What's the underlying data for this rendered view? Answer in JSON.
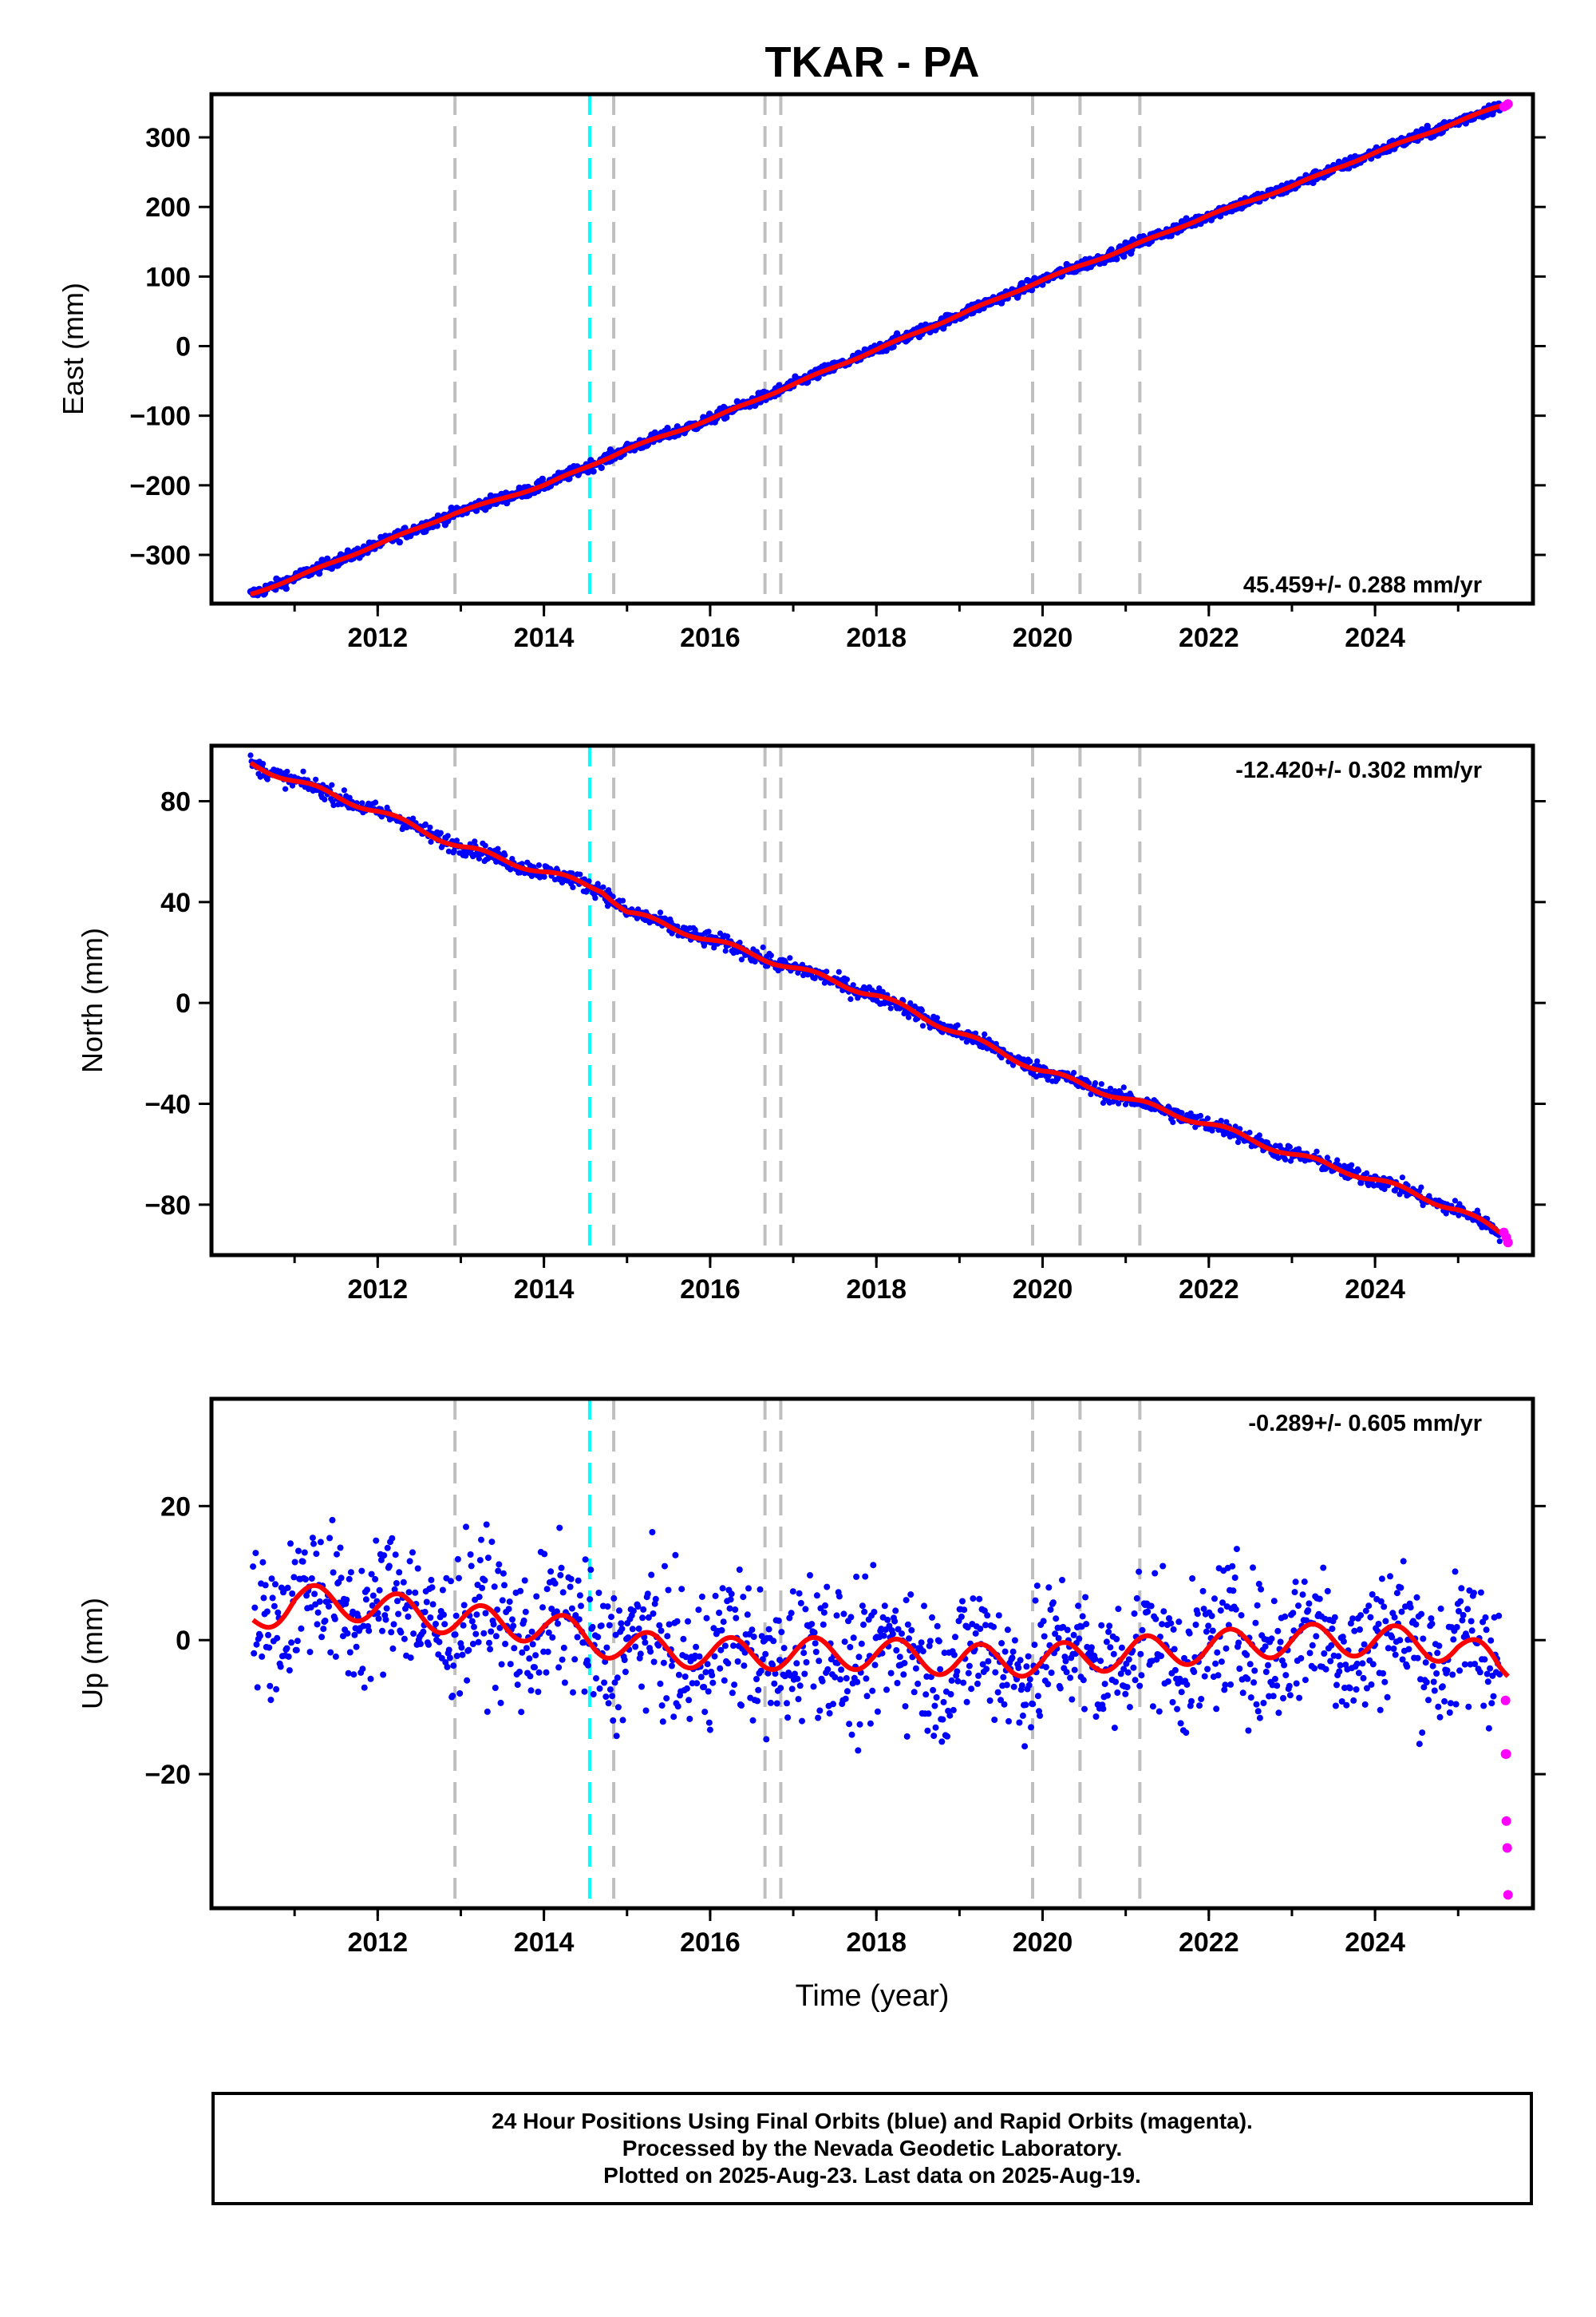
{
  "title": "TKAR - PA",
  "colors": {
    "final_orbits": "#0000ff",
    "rapid_orbits": "#ff00ff",
    "model_fit": "#ff0000",
    "event_line": "#bfbfbf",
    "highlight_event_line": "#00ffff"
  },
  "caption": {
    "line1": "24 Hour Positions Using Final Orbits (blue) and Rapid Orbits (magenta).",
    "line2": "Processed by the Nevada Geodetic Laboratory.",
    "line3": "Plotted on 2025-Aug-23. Last data on 2025-Aug-19."
  },
  "chart_data": [
    {
      "type": "scatter",
      "component": "East",
      "ylabel": "East (mm)",
      "xlabel": "",
      "xlim": [
        2010.0,
        2025.9
      ],
      "ylim": [
        -370,
        362
      ],
      "yticks": [
        -300,
        -200,
        -100,
        0,
        100,
        200,
        300
      ],
      "xticks": [
        2012,
        2014,
        2016,
        2018,
        2020,
        2022,
        2024
      ],
      "rate_label": "45.459+/- 0.288 mm/yr",
      "rate_position": "bottom-right",
      "grid": false,
      "event_lines": [
        2012.93,
        2014.84,
        2016.66,
        2016.85,
        2019.88,
        2020.45,
        2021.17
      ],
      "highlight_event_lines": [
        2014.55
      ],
      "series": [
        {
          "name": "Final Orbits",
          "color": "#0000ff",
          "x": [
            2010.47,
            2011.0,
            2012.0,
            2012.93,
            2014.0,
            2014.55,
            2015.0,
            2016.0,
            2017.0,
            2018.0,
            2019.0,
            2020.0,
            2021.0,
            2022.0,
            2023.0,
            2024.0,
            2025.5
          ],
          "y": [
            -357,
            -333,
            -285,
            -240,
            -200,
            -172,
            -148,
            -105,
            -55,
            -5,
            45,
            95,
            140,
            188,
            230,
            278,
            345
          ]
        },
        {
          "name": "Rapid Orbits",
          "color": "#ff00ff",
          "x": [
            2025.55,
            2025.58,
            2025.6
          ],
          "y": [
            344,
            346,
            348
          ]
        }
      ]
    },
    {
      "type": "scatter",
      "component": "North",
      "ylabel": "North (mm)",
      "xlabel": "",
      "xlim": [
        2010.0,
        2025.9
      ],
      "ylim": [
        -100,
        102
      ],
      "yticks": [
        -80,
        -40,
        0,
        40,
        80
      ],
      "xticks": [
        2012,
        2014,
        2016,
        2018,
        2020,
        2022,
        2024
      ],
      "rate_label": "-12.420+/- 0.302 mm/yr",
      "rate_position": "top-right",
      "grid": false,
      "event_lines": [
        2012.93,
        2014.84,
        2016.66,
        2016.85,
        2019.88,
        2020.45,
        2021.17
      ],
      "highlight_event_lines": [
        2014.55
      ],
      "series": [
        {
          "name": "Final Orbits",
          "color": "#0000ff",
          "x": [
            2010.47,
            2011.0,
            2012.0,
            2013.0,
            2014.0,
            2014.7,
            2015.0,
            2016.0,
            2017.0,
            2018.0,
            2019.0,
            2020.0,
            2021.0,
            2022.0,
            2023.0,
            2024.0,
            2025.0,
            2025.5
          ],
          "y": [
            95,
            88,
            76,
            62,
            52,
            45,
            36,
            25,
            14,
            3,
            -12,
            -27,
            -38,
            -48,
            -60,
            -70,
            -82,
            -91
          ]
        },
        {
          "name": "Rapid Orbits",
          "color": "#ff00ff",
          "x": [
            2025.55,
            2025.58,
            2025.6
          ],
          "y": [
            -91,
            -93,
            -95
          ]
        }
      ]
    },
    {
      "type": "scatter",
      "component": "Up",
      "ylabel": "Up (mm)",
      "xlabel": "Time (year)",
      "xlim": [
        2010.0,
        2025.9
      ],
      "ylim": [
        -40,
        36
      ],
      "yticks": [
        -20,
        0,
        20
      ],
      "xticks": [
        2012,
        2014,
        2016,
        2018,
        2020,
        2022,
        2024
      ],
      "rate_label": "-0.289+/- 0.605 mm/yr",
      "rate_position": "top-right",
      "grid": false,
      "event_lines": [
        2012.93,
        2014.84,
        2016.66,
        2016.85,
        2019.88,
        2020.45,
        2021.17
      ],
      "highlight_event_lines": [
        2014.55
      ],
      "series": [
        {
          "name": "Final Orbits",
          "color": "#0000ff",
          "x": [
            2010.5,
            2011.0,
            2012.0,
            2013.0,
            2014.0,
            2015.0,
            2016.0,
            2017.0,
            2018.0,
            2019.0,
            2020.0,
            2021.0,
            2022.0,
            2023.0,
            2024.0,
            2025.0,
            2025.5
          ],
          "y": [
            3,
            6,
            5,
            3,
            2,
            -1,
            -2,
            -2,
            -2,
            -3,
            -3,
            -2,
            -1,
            0,
            0,
            -1,
            -4
          ]
        },
        {
          "name": "Rapid Orbits",
          "color": "#ff00ff",
          "x": [
            2025.57,
            2025.57,
            2025.58,
            2025.58,
            2025.59,
            2025.6
          ],
          "y": [
            -9,
            -17,
            -17,
            -27,
            -31,
            -38
          ]
        }
      ]
    }
  ]
}
